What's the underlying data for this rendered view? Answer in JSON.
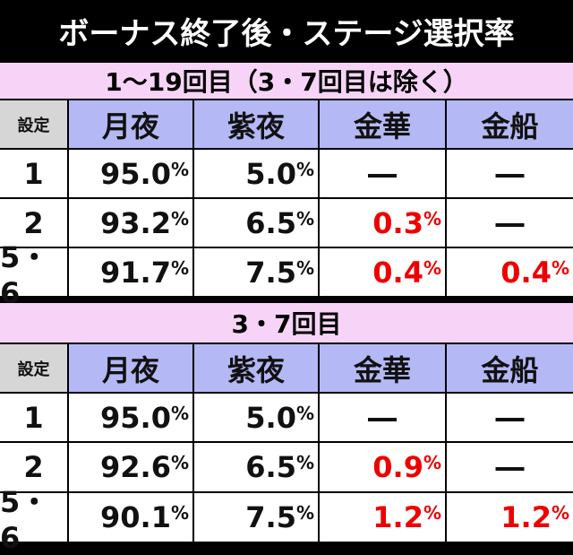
{
  "title": "ボーナス終了後・ステージ選択率",
  "tables": [
    {
      "caption": "1〜19回目（3・7回目は除く）",
      "header": [
        "設定",
        "月夜",
        "紫夜",
        "金華",
        "金船"
      ],
      "rows": [
        [
          "1",
          "95.0%",
          "5.0%",
          "―",
          "―"
        ],
        [
          "2",
          "93.2%",
          "6.5%",
          "0.3%",
          "―"
        ],
        [
          "5・6",
          "91.7%",
          "7.5%",
          "0.4%",
          "0.4%"
        ]
      ]
    },
    {
      "caption": "3・7回目",
      "header": [
        "設定",
        "月夜",
        "紫夜",
        "金華",
        "金船"
      ],
      "rows": [
        [
          "1",
          "95.0%",
          "5.0%",
          "―",
          "―"
        ],
        [
          "2",
          "92.6%",
          "6.5%",
          "0.9%",
          "―"
        ],
        [
          "5・6",
          "90.1%",
          "7.5%",
          "1.2%",
          "1.2%"
        ]
      ]
    }
  ]
}
